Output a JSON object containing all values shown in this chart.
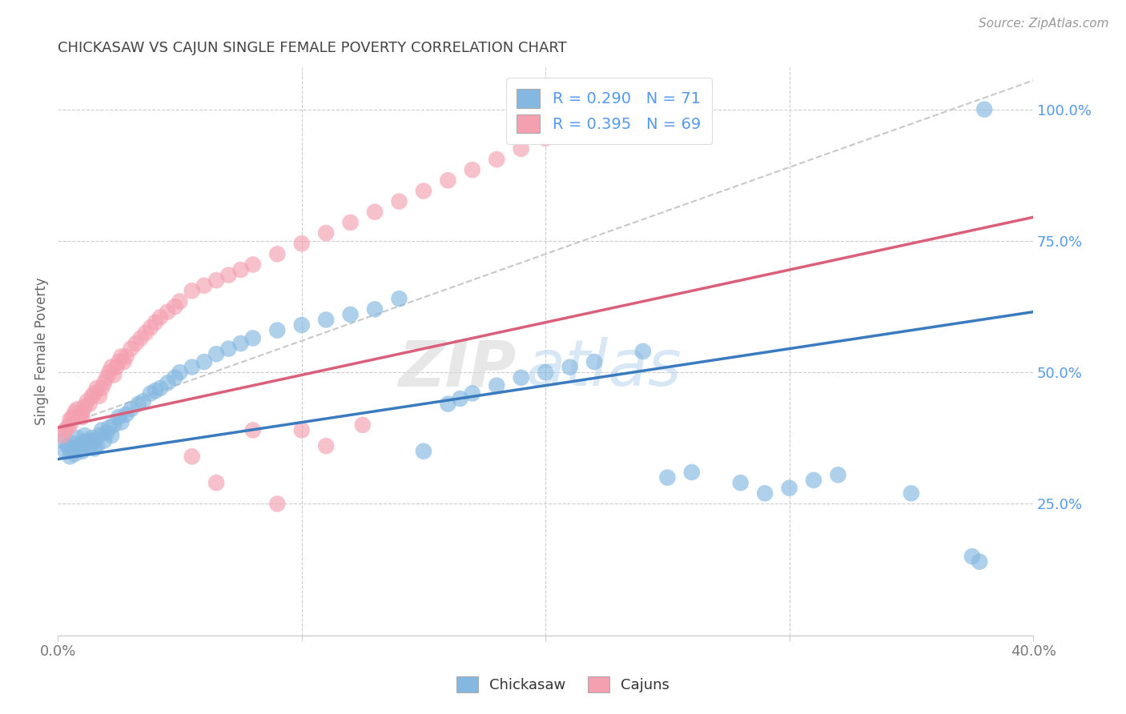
{
  "title": "CHICKASAW VS CAJUN SINGLE FEMALE POVERTY CORRELATION CHART",
  "source": "Source: ZipAtlas.com",
  "ylabel": "Single Female Poverty",
  "legend_blue_R": "0.290",
  "legend_blue_N": "71",
  "legend_pink_R": "0.395",
  "legend_pink_N": "69",
  "legend_blue_label": "Chickasaw",
  "legend_pink_label": "Cajuns",
  "blue_color": "#85b8e0",
  "pink_color": "#f4a0b0",
  "blue_line_color": "#3a7abf",
  "pink_line_color": "#d95f7a",
  "dashed_line_color": "#c8c8c8",
  "background_color": "#ffffff",
  "grid_color": "#cccccc",
  "watermark_zip": "ZIP",
  "watermark_atlas": "atlas",
  "xlim": [
    0.0,
    0.4
  ],
  "ylim": [
    0.0,
    1.08
  ],
  "blue_trend": [
    0.0,
    0.335,
    0.4,
    0.615
  ],
  "pink_trend": [
    0.0,
    0.395,
    0.4,
    0.795
  ],
  "dashed_trend": [
    0.0,
    0.395,
    0.4,
    1.055
  ],
  "yticks": [
    0.25,
    0.5,
    0.75,
    1.0
  ],
  "ytick_labels": [
    "25.0%",
    "50.0%",
    "75.0%",
    "100.0%"
  ],
  "xtick_labels": [
    "0.0%",
    "",
    "",
    "",
    "40.0%"
  ],
  "blue_x": [
    0.002,
    0.003,
    0.004,
    0.005,
    0.005,
    0.006,
    0.007,
    0.008,
    0.008,
    0.009,
    0.01,
    0.01,
    0.011,
    0.012,
    0.013,
    0.014,
    0.015,
    0.015,
    0.016,
    0.017,
    0.018,
    0.019,
    0.02,
    0.021,
    0.022,
    0.023,
    0.025,
    0.026,
    0.028,
    0.03,
    0.033,
    0.035,
    0.038,
    0.04,
    0.042,
    0.045,
    0.048,
    0.05,
    0.055,
    0.06,
    0.065,
    0.07,
    0.075,
    0.08,
    0.09,
    0.1,
    0.11,
    0.12,
    0.13,
    0.14,
    0.15,
    0.16,
    0.165,
    0.17,
    0.18,
    0.19,
    0.2,
    0.21,
    0.22,
    0.24,
    0.25,
    0.26,
    0.28,
    0.29,
    0.3,
    0.31,
    0.32,
    0.35,
    0.375,
    0.378,
    0.38
  ],
  "blue_y": [
    0.37,
    0.35,
    0.36,
    0.34,
    0.355,
    0.365,
    0.345,
    0.36,
    0.375,
    0.355,
    0.35,
    0.365,
    0.38,
    0.37,
    0.36,
    0.375,
    0.355,
    0.37,
    0.36,
    0.38,
    0.39,
    0.37,
    0.385,
    0.395,
    0.38,
    0.4,
    0.415,
    0.405,
    0.42,
    0.43,
    0.44,
    0.445,
    0.46,
    0.465,
    0.47,
    0.48,
    0.49,
    0.5,
    0.51,
    0.52,
    0.535,
    0.545,
    0.555,
    0.565,
    0.58,
    0.59,
    0.6,
    0.61,
    0.62,
    0.64,
    0.35,
    0.44,
    0.45,
    0.46,
    0.475,
    0.49,
    0.5,
    0.51,
    0.52,
    0.54,
    0.3,
    0.31,
    0.29,
    0.27,
    0.28,
    0.295,
    0.305,
    0.27,
    0.15,
    0.14,
    1.0
  ],
  "pink_x": [
    0.002,
    0.003,
    0.004,
    0.005,
    0.005,
    0.006,
    0.007,
    0.008,
    0.009,
    0.01,
    0.01,
    0.011,
    0.012,
    0.013,
    0.014,
    0.015,
    0.016,
    0.017,
    0.018,
    0.019,
    0.02,
    0.021,
    0.022,
    0.023,
    0.024,
    0.025,
    0.026,
    0.027,
    0.028,
    0.03,
    0.032,
    0.034,
    0.036,
    0.038,
    0.04,
    0.042,
    0.045,
    0.048,
    0.05,
    0.055,
    0.06,
    0.065,
    0.07,
    0.075,
    0.08,
    0.09,
    0.1,
    0.11,
    0.12,
    0.13,
    0.14,
    0.15,
    0.16,
    0.17,
    0.18,
    0.19,
    0.2,
    0.21,
    0.22,
    0.23,
    0.24,
    0.25,
    0.055,
    0.065,
    0.08,
    0.09,
    0.1,
    0.11,
    0.125
  ],
  "pink_y": [
    0.38,
    0.39,
    0.395,
    0.4,
    0.41,
    0.415,
    0.425,
    0.43,
    0.42,
    0.415,
    0.425,
    0.435,
    0.445,
    0.44,
    0.455,
    0.46,
    0.47,
    0.455,
    0.47,
    0.48,
    0.49,
    0.5,
    0.51,
    0.495,
    0.51,
    0.52,
    0.53,
    0.52,
    0.53,
    0.545,
    0.555,
    0.565,
    0.575,
    0.585,
    0.595,
    0.605,
    0.615,
    0.625,
    0.635,
    0.655,
    0.665,
    0.675,
    0.685,
    0.695,
    0.705,
    0.725,
    0.745,
    0.765,
    0.785,
    0.805,
    0.825,
    0.845,
    0.865,
    0.885,
    0.905,
    0.925,
    0.945,
    0.965,
    0.975,
    0.985,
    0.995,
    1.005,
    0.34,
    0.29,
    0.39,
    0.25,
    0.39,
    0.36,
    0.4
  ],
  "title_color": "#444444",
  "ylabel_color": "#666666",
  "xtick_color": "#777777",
  "ytick_right_color": "#5599ee",
  "source_color": "#999999",
  "legend_text_color": "#333333",
  "legend_value_color": "#5599ee"
}
